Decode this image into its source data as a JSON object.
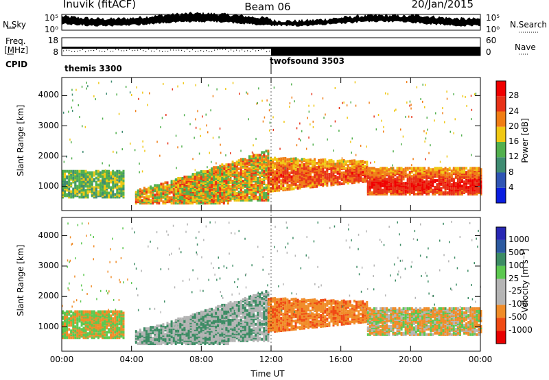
{
  "header": {
    "station": "Inuvik (fitACF)",
    "beam": "Beam 06",
    "date": "20/Jan/2015"
  },
  "labels": {
    "nsky": "N.Sky",
    "nsky_top": "10^5",
    "nsky_bottom": "10^0",
    "nsearch": "N.Search",
    "nsearch_top": "10^5",
    "nsearch_bottom": "10^0",
    "freq_line1": "Freq.",
    "freq_line2": "[MHz]",
    "freq_top": "18",
    "freq_bottom": "8",
    "nave": "Nave",
    "nave_top": "60",
    "nave_bottom": "0",
    "cpid": "CPID"
  },
  "colors": {
    "power": [
      "#0a1ee0",
      "#2f55b4",
      "#3f8c72",
      "#52b04e",
      "#f0c814",
      "#f07d14",
      "#e83218",
      "#f00000"
    ],
    "velocity": [
      "#e80000",
      "#f04a14",
      "#f08c28",
      "#b4b4b4",
      "#b4b4b4",
      "#5cc850",
      "#3c8c64",
      "#2c5aa0",
      "#2828b4"
    ]
  },
  "chart_data": [
    {
      "type": "line",
      "name": "nsky-nsearch-strip",
      "ylabel_left": "N.Sky",
      "ylabel_right": "N.Search",
      "yticks_left": [
        "10^5",
        "10^0"
      ],
      "yticks_right": [
        "10^5",
        "10^0"
      ],
      "scale": "log"
    },
    {
      "type": "scatter",
      "name": "freq-nave-strip",
      "ylabel_left": "Freq. [MHz]",
      "ylabel_right": "Nave",
      "ylim_left": [
        8,
        18
      ],
      "ylim_right": [
        0,
        60
      ]
    },
    {
      "type": "table",
      "name": "cpid",
      "label": "CPID",
      "segments": [
        {
          "name": "themis",
          "cpid": "3300",
          "text": "themis 3300",
          "start": "00:00",
          "end": "12:00"
        },
        {
          "name": "twofsound",
          "cpid": "3503",
          "text": "twofsound 3503",
          "start": "12:00",
          "end": "24:00"
        }
      ]
    },
    {
      "type": "heatmap",
      "name": "power",
      "xlabel": "",
      "ylabel": "Slant Range [km]",
      "xlim": [
        "00:00",
        "24:00"
      ],
      "ylim": [
        200,
        4600
      ],
      "yticks": [
        1000,
        2000,
        3000,
        4000
      ],
      "colorbar_label": "Power [dB]",
      "colorbar_ticks": [
        4,
        8,
        12,
        16,
        20,
        24,
        28
      ],
      "colorbar_range": [
        0,
        32
      ]
    },
    {
      "type": "heatmap",
      "name": "velocity",
      "xlabel": "Time UT",
      "ylabel": "Slant Range [km]",
      "xlim": [
        "00:00",
        "24:00"
      ],
      "ylim": [
        200,
        4600
      ],
      "yticks": [
        1000,
        2000,
        3000,
        4000
      ],
      "xticks": [
        "00:00",
        "04:00",
        "08:00",
        "12:00",
        "16:00",
        "20:00",
        "00:00"
      ],
      "colorbar_label": "Velocity [m s^-1]",
      "colorbar_ticks": [
        "-1000",
        "-500",
        "-100",
        "-25",
        "25",
        "100",
        "500",
        "1000"
      ]
    }
  ]
}
